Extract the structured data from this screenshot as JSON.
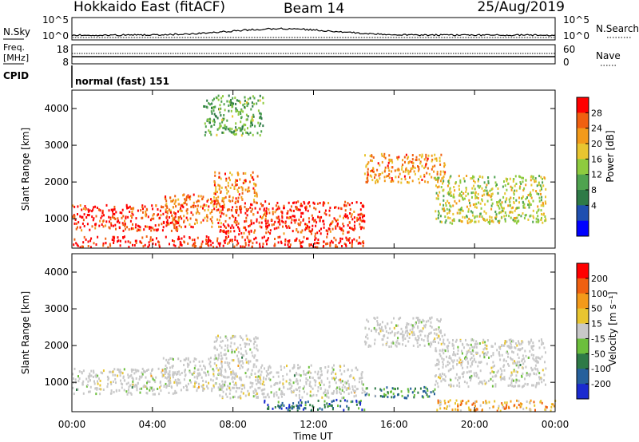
{
  "header": {
    "site": "Hokkaido East (fitACF)",
    "beam": "Beam 14",
    "date": "25/Aug/2019"
  },
  "top_panels": {
    "nsky_label": "N.Sky",
    "nsky_ticks": [
      "10^5",
      "10^0"
    ],
    "nsearch_label": "N.Search",
    "nsearch_ticks": [
      "10^5",
      "10^0"
    ],
    "freq_label": "Freq.",
    "freq_unit": "[MHz]",
    "freq_ticks": [
      "18",
      "8"
    ],
    "nave_label": "Nave",
    "nave_ticks": [
      "60",
      "0"
    ],
    "cpid_label": "CPID",
    "cpid_value": "normal (fast) 151"
  },
  "chart_data": [
    {
      "type": "heatmap",
      "name": "power",
      "ylabel": "Slant Range [km]",
      "yticks": [
        1000,
        2000,
        3000,
        4000
      ],
      "ylim": [
        200,
        4500
      ],
      "xlim": [
        0,
        24
      ],
      "colorbar": {
        "label": "Power [dB]",
        "ticks": [
          "28",
          "24",
          "20",
          "16",
          "12",
          "8",
          "4"
        ],
        "colors": [
          "#0000ff",
          "#1f4fb0",
          "#2e7a47",
          "#4fa34f",
          "#8ecb3f",
          "#e8c530",
          "#f39a1a",
          "#f06010",
          "#ff0000"
        ]
      },
      "regions": [
        {
          "t": [
            0.0,
            5.3
          ],
          "r": [
            700,
            1400
          ],
          "level": 0.9
        },
        {
          "t": [
            4.5,
            7.5
          ],
          "r": [
            800,
            1700
          ],
          "level": 0.8
        },
        {
          "t": [
            7.3,
            14.5
          ],
          "r": [
            600,
            1500
          ],
          "level": 0.92
        },
        {
          "t": [
            7.0,
            9.2
          ],
          "r": [
            1500,
            2300
          ],
          "level": 0.75
        },
        {
          "t": [
            14.5,
            18.5
          ],
          "r": [
            2000,
            2800
          ],
          "level": 0.75
        },
        {
          "t": [
            18.0,
            23.5
          ],
          "r": [
            900,
            2200
          ],
          "level": 0.55
        },
        {
          "t": [
            0.0,
            14.5
          ],
          "r": [
            250,
            550
          ],
          "level": 0.95
        },
        {
          "t": [
            6.5,
            9.5
          ],
          "r": [
            3300,
            4400
          ],
          "level": 0.4
        }
      ]
    },
    {
      "type": "heatmap",
      "name": "velocity",
      "ylabel": "Slant Range [km]",
      "yticks": [
        1000,
        2000,
        3000,
        4000
      ],
      "ylim": [
        200,
        4500
      ],
      "xlim": [
        0,
        24
      ],
      "colorbar": {
        "label": "Velocity [m s⁻¹]",
        "ticks": [
          "200",
          "100",
          "50",
          "15",
          "-15",
          "-50",
          "-100",
          "-200"
        ],
        "colors": [
          "#1a2ad0",
          "#26609c",
          "#2e7a47",
          "#6cbf3c",
          "#c8c8c8",
          "#e8c530",
          "#f39a1a",
          "#f06010",
          "#ff0000"
        ]
      },
      "regions": [
        {
          "t": [
            0.0,
            5.3
          ],
          "r": [
            700,
            1400
          ],
          "level": 0.5
        },
        {
          "t": [
            4.5,
            7.5
          ],
          "r": [
            800,
            1700
          ],
          "level": 0.5
        },
        {
          "t": [
            7.3,
            14.5
          ],
          "r": [
            600,
            1500
          ],
          "level": 0.5
        },
        {
          "t": [
            7.0,
            9.2
          ],
          "r": [
            1500,
            2300
          ],
          "level": 0.5
        },
        {
          "t": [
            14.5,
            18.5
          ],
          "r": [
            2000,
            2800
          ],
          "level": 0.5
        },
        {
          "t": [
            18.0,
            23.5
          ],
          "r": [
            900,
            2200
          ],
          "level": 0.5
        },
        {
          "t": [
            9.5,
            14.5
          ],
          "r": [
            250,
            550
          ],
          "level": 0.2
        },
        {
          "t": [
            18.0,
            24.0
          ],
          "r": [
            250,
            550
          ],
          "level": 0.68
        },
        {
          "t": [
            14.5,
            18.0
          ],
          "r": [
            600,
            900
          ],
          "level": 0.3
        }
      ]
    }
  ],
  "xaxis": {
    "ticks": [
      "00:00",
      "04:00",
      "08:00",
      "12:00",
      "16:00",
      "20:00",
      "00:00"
    ],
    "label": "Time UT"
  }
}
